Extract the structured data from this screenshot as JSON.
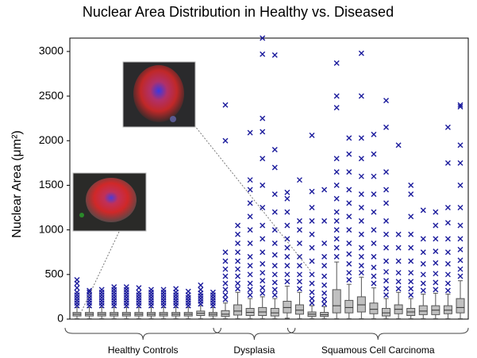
{
  "chart_data": {
    "type": "box",
    "title": "Nuclear Area Distribution in Healthy vs. Diseased",
    "y_label": "Nuclear Area (μm²)",
    "ylim": [
      0,
      3150
    ],
    "yticks": [
      0,
      500,
      1000,
      1500,
      2000,
      2500,
      3000
    ],
    "box_color": "#c0c0c0",
    "outlier_color": "#1a1a9c",
    "groups": [
      {
        "label": "Healthy Controls",
        "boxes": [
          {
            "low": 5,
            "q1": 35,
            "median": 55,
            "q3": 75,
            "high": 130,
            "outliers": [
              150,
              180,
              210,
              240,
              270,
              300,
              350,
              400,
              440
            ]
          },
          {
            "low": 5,
            "q1": 35,
            "median": 55,
            "q3": 75,
            "high": 130,
            "outliers": [
              150,
              180,
              210,
              240,
              270,
              300,
              320
            ]
          },
          {
            "low": 5,
            "q1": 35,
            "median": 55,
            "q3": 75,
            "high": 130,
            "outliers": [
              150,
              180,
              210,
              240,
              270,
              300,
              330
            ]
          },
          {
            "low": 5,
            "q1": 35,
            "median": 55,
            "q3": 75,
            "high": 130,
            "outliers": [
              150,
              180,
              210,
              240,
              270,
              300,
              330,
              360
            ]
          },
          {
            "low": 5,
            "q1": 35,
            "median": 55,
            "q3": 75,
            "high": 130,
            "outliers": [
              150,
              180,
              210,
              240,
              270,
              300,
              330,
              360
            ]
          },
          {
            "low": 5,
            "q1": 35,
            "median": 55,
            "q3": 75,
            "high": 130,
            "outliers": [
              150,
              180,
              210,
              240,
              270,
              300,
              350
            ]
          },
          {
            "low": 5,
            "q1": 35,
            "median": 55,
            "q3": 75,
            "high": 130,
            "outliers": [
              150,
              180,
              210,
              240,
              270,
              300,
              330
            ]
          },
          {
            "low": 5,
            "q1": 35,
            "median": 55,
            "q3": 75,
            "high": 130,
            "outliers": [
              150,
              180,
              210,
              240,
              270,
              300,
              330
            ]
          },
          {
            "low": 5,
            "q1": 35,
            "median": 55,
            "q3": 75,
            "high": 130,
            "outliers": [
              150,
              180,
              210,
              240,
              270,
              300,
              340
            ]
          },
          {
            "low": 5,
            "q1": 35,
            "median": 55,
            "q3": 75,
            "high": 130,
            "outliers": [
              150,
              180,
              210,
              240,
              270,
              310
            ]
          },
          {
            "low": 5,
            "q1": 40,
            "median": 65,
            "q3": 90,
            "high": 150,
            "outliers": [
              170,
              200,
              230,
              260,
              290,
              330,
              380
            ]
          },
          {
            "low": 5,
            "q1": 35,
            "median": 55,
            "q3": 75,
            "high": 130,
            "outliers": [
              150,
              180,
              210,
              240,
              270,
              300
            ]
          }
        ]
      },
      {
        "label": "Dysplasia",
        "boxes": [
          {
            "low": 5,
            "q1": 30,
            "median": 55,
            "q3": 95,
            "high": 180,
            "outliers": [
              220,
              270,
              330,
              400,
              480,
              560,
              650,
              750,
              2000,
              2400
            ]
          },
          {
            "low": 5,
            "q1": 45,
            "median": 90,
            "q3": 160,
            "high": 300,
            "outliers": [
              340,
              400,
              480,
              560,
              650,
              750,
              850,
              950,
              1050
            ]
          },
          {
            "low": 5,
            "q1": 40,
            "median": 75,
            "q3": 120,
            "high": 230,
            "outliers": [
              270,
              330,
              400,
              500,
              600,
              700,
              850,
              1000,
              1150,
              1300,
              1450,
              1560,
              2090
            ]
          },
          {
            "low": 5,
            "q1": 40,
            "median": 80,
            "q3": 130,
            "high": 250,
            "outliers": [
              290,
              350,
              430,
              520,
              620,
              750,
              900,
              1050,
              1250,
              1500,
              1800,
              2100,
              2250,
              2970,
              3150
            ]
          },
          {
            "low": 5,
            "q1": 35,
            "median": 70,
            "q3": 120,
            "high": 230,
            "outliers": [
              270,
              330,
              410,
              500,
              600,
              720,
              850,
              1000,
              1200,
              1400,
              1700,
              1900,
              2960
            ]
          },
          {
            "low": 10,
            "q1": 70,
            "median": 130,
            "q3": 200,
            "high": 370,
            "outliers": [
              420,
              500,
              600,
              700,
              800,
              900,
              1050,
              1200,
              1350,
              1420
            ]
          }
        ]
      },
      {
        "label": "Squamous Cell Carcinoma",
        "boxes": [
          {
            "low": 5,
            "q1": 55,
            "median": 100,
            "q3": 160,
            "high": 300,
            "outliers": [
              340,
              420,
              500,
              600,
              700,
              850,
              1000,
              1100,
              1560
            ]
          },
          {
            "low": 5,
            "q1": 30,
            "median": 55,
            "q3": 80,
            "high": 150,
            "outliers": [
              180,
              230,
              300,
              400,
              500,
              650,
              800,
              950,
              1100,
              1250,
              1430,
              2060
            ]
          },
          {
            "low": 5,
            "q1": 30,
            "median": 50,
            "q3": 75,
            "high": 140,
            "outliers": [
              170,
              220,
              290,
              380,
              480,
              600,
              700,
              850,
              1100,
              1450
            ]
          },
          {
            "low": 5,
            "q1": 70,
            "median": 150,
            "q3": 330,
            "high": 640,
            "outliers": [
              700,
              800,
              900,
              1000,
              1100,
              1200,
              1350,
              1500,
              1650,
              1800,
              2370,
              2500,
              2870
            ]
          },
          {
            "low": 5,
            "q1": 70,
            "median": 130,
            "q3": 210,
            "high": 390,
            "outliers": [
              440,
              520,
              620,
              730,
              850,
              1000,
              1150,
              1300,
              1450,
              1650,
              1850,
              2030
            ]
          },
          {
            "low": 5,
            "q1": 80,
            "median": 160,
            "q3": 250,
            "high": 470,
            "outliers": [
              520,
              600,
              700,
              800,
              950,
              1100,
              1250,
              1400,
              1600,
              1800,
              2030,
              2500,
              2980
            ]
          },
          {
            "low": 5,
            "q1": 60,
            "median": 110,
            "q3": 180,
            "high": 350,
            "outliers": [
              400,
              480,
              580,
              700,
              850,
              1000,
              1200,
              1400,
              1600,
              1850,
              2070
            ]
          },
          {
            "low": 5,
            "q1": 35,
            "median": 70,
            "q3": 120,
            "high": 230,
            "outliers": [
              270,
              340,
              430,
              530,
              650,
              800,
              950,
              1100,
              1300,
              1450,
              1650,
              2150,
              2450
            ]
          },
          {
            "low": 5,
            "q1": 60,
            "median": 110,
            "q3": 160,
            "high": 300,
            "outliers": [
              340,
              420,
              520,
              650,
              800,
              950,
              1950
            ]
          },
          {
            "low": 5,
            "q1": 40,
            "median": 80,
            "q3": 120,
            "high": 230,
            "outliers": [
              270,
              340,
              420,
              520,
              650,
              800,
              950,
              1150,
              1400,
              1500
            ]
          },
          {
            "low": 5,
            "q1": 50,
            "median": 90,
            "q3": 150,
            "high": 280,
            "outliers": [
              320,
              400,
              500,
              620,
              750,
              900,
              1220
            ]
          },
          {
            "low": 5,
            "q1": 50,
            "median": 100,
            "q3": 150,
            "high": 290,
            "outliers": [
              330,
              410,
              510,
              630,
              760,
              900,
              1050,
              1200
            ]
          },
          {
            "low": 5,
            "q1": 60,
            "median": 100,
            "q3": 150,
            "high": 280,
            "outliers": [
              320,
              400,
              500,
              620,
              750,
              900,
              1080,
              1250,
              1750,
              2150
            ]
          },
          {
            "low": 5,
            "q1": 70,
            "median": 130,
            "q3": 230,
            "high": 430,
            "outliers": [
              480,
              560,
              660,
              780,
              900,
              1050,
              1250,
              1500,
              1750,
              1950,
              2380,
              2400
            ]
          }
        ]
      }
    ]
  }
}
